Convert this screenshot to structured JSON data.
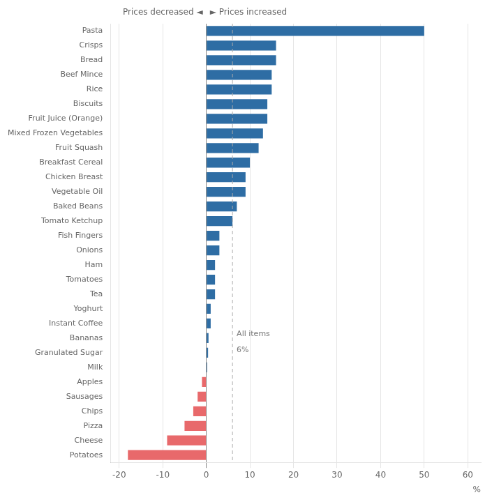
{
  "chart_data": {
    "type": "bar",
    "orientation": "horizontal",
    "title": [
      "Prices decreased ◄",
      "► Prices increased"
    ],
    "xlabel": "%",
    "categories": [
      "Pasta",
      "Crisps",
      "Bread",
      "Beef Mince",
      "Rice",
      "Biscuits",
      "Fruit Juice (Orange)",
      "Mixed Frozen Vegetables",
      "Fruit Squash",
      "Breakfast Cereal",
      "Chicken Breast",
      "Vegetable Oil",
      "Baked Beans",
      "Tomato Ketchup",
      "Fish Fingers",
      "Onions",
      "Ham",
      "Tomatoes",
      "Tea",
      "Yoghurt",
      "Instant Coffee",
      "Bananas",
      "Granulated Sugar",
      "Milk",
      "Apples",
      "Sausages",
      "Chips",
      "Pizza",
      "Cheese",
      "Potatoes"
    ],
    "values": [
      50,
      16,
      16,
      15,
      15,
      14,
      14,
      13,
      12,
      10,
      9,
      9,
      7,
      6,
      3,
      3,
      2,
      2,
      2,
      1,
      1,
      0.5,
      0.4,
      0.2,
      -1,
      -2,
      -3,
      -5,
      -9,
      -18
    ],
    "colors": [
      "#2e6da4",
      "#2e6da4",
      "#2e6da4",
      "#2e6da4",
      "#2e6da4",
      "#2e6da4",
      "#2e6da4",
      "#2e6da4",
      "#2e6da4",
      "#2e6da4",
      "#2e6da4",
      "#2e6da4",
      "#2e6da4",
      "#2e6da4",
      "#2e6da4",
      "#2e6da4",
      "#2e6da4",
      "#2e6da4",
      "#2e6da4",
      "#2e6da4",
      "#2e6da4",
      "#2e6da4",
      "#2e6da4",
      "#2e6da4",
      "#e8696b",
      "#e8696b",
      "#e8696b",
      "#e8696b",
      "#e8696b",
      "#e8696b"
    ],
    "xlim": [
      -22,
      63
    ],
    "xticks": [
      -20,
      -10,
      0,
      10,
      20,
      30,
      40,
      50,
      60
    ],
    "grid": true,
    "annotations": [
      {
        "x": 6,
        "y": "Bananas",
        "text": [
          "All items",
          "6%"
        ]
      }
    ]
  }
}
